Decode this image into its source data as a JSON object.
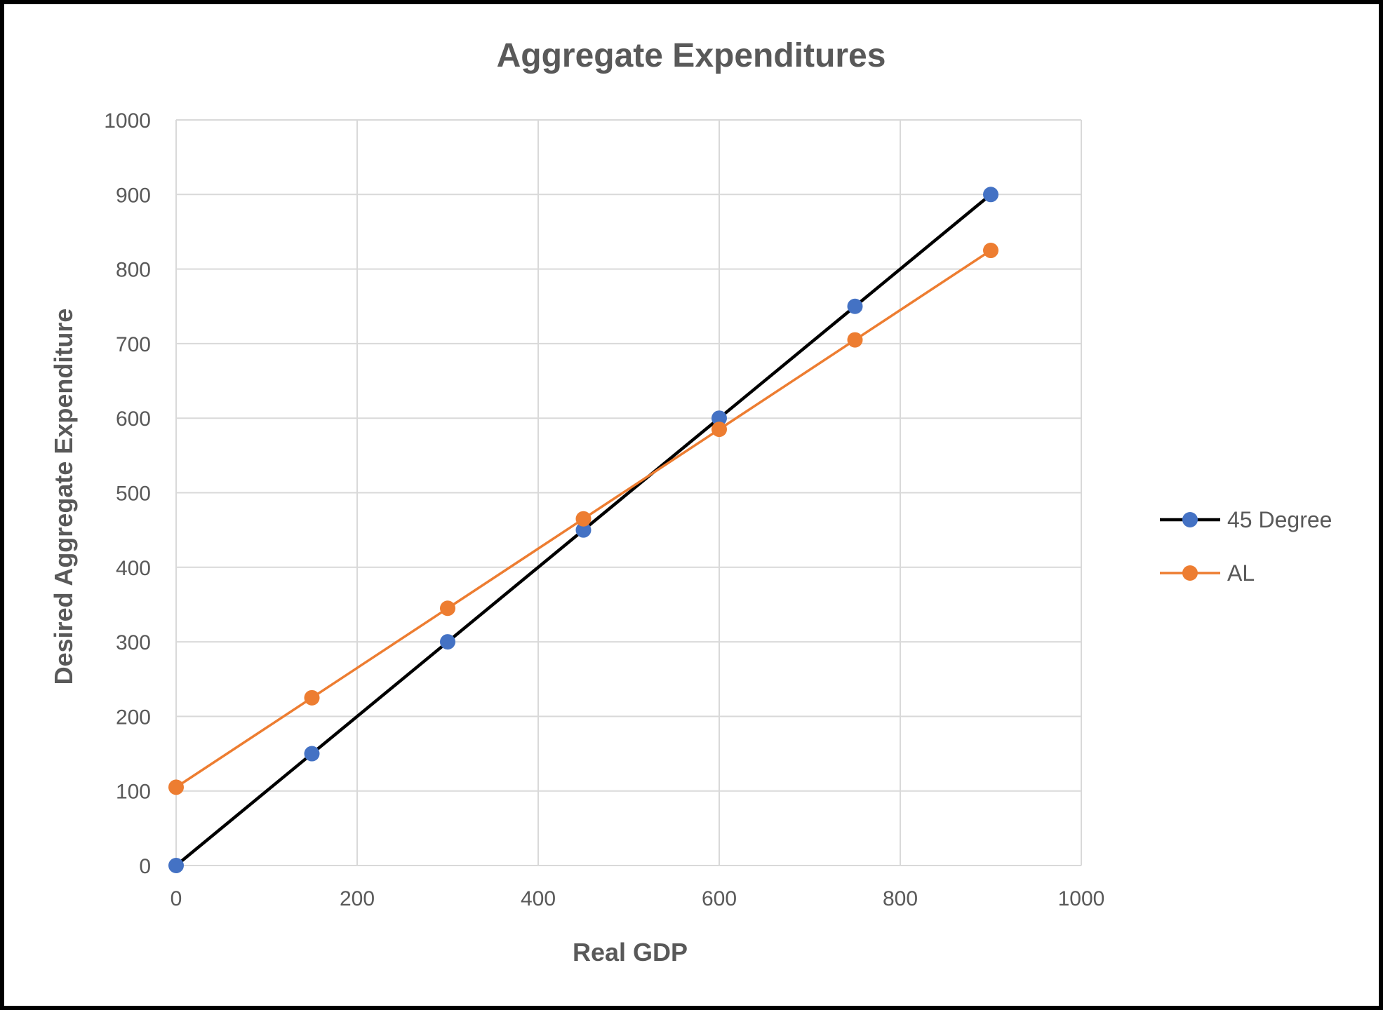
{
  "chart_data": {
    "type": "line",
    "title": "Aggregate Expenditures",
    "xlabel": "Real GDP",
    "ylabel": "Desired Aggregate Expenditure",
    "xlim": [
      0,
      1000
    ],
    "ylim": [
      0,
      1000
    ],
    "x_ticks": [
      "0",
      "200",
      "400",
      "600",
      "800",
      "1000"
    ],
    "y_ticks": [
      "0",
      "100",
      "200",
      "300",
      "400",
      "500",
      "600",
      "700",
      "800",
      "900",
      "1000"
    ],
    "grid": true,
    "legend_position": "right",
    "series": [
      {
        "name": "45 Degree",
        "line_color": "#000000",
        "marker_color": "#4472C4",
        "x": [
          0,
          150,
          300,
          450,
          600,
          750,
          900
        ],
        "y": [
          0,
          150,
          300,
          450,
          600,
          750,
          900
        ]
      },
      {
        "name": "AL",
        "line_color": "#ED7D31",
        "marker_color": "#ED7D31",
        "x": [
          0,
          150,
          300,
          450,
          600,
          750,
          900
        ],
        "y": [
          105,
          225,
          345,
          465,
          585,
          705,
          825
        ]
      }
    ]
  }
}
